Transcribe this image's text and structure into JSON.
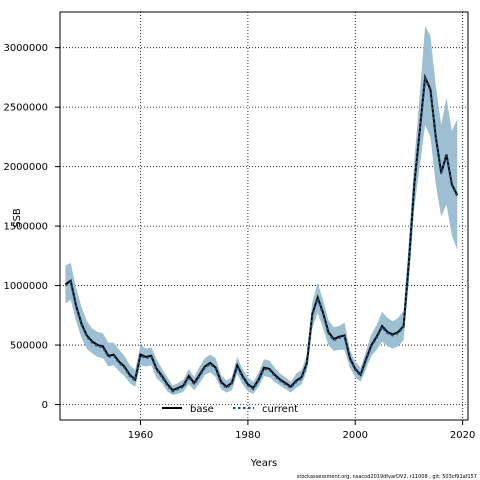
{
  "chart_data": {
    "type": "line",
    "xlabel": "Years",
    "ylabel": "SSB",
    "xlim": [
      1945,
      2021
    ],
    "ylim": [
      -130000,
      3300000
    ],
    "xticks": [
      1960,
      1980,
      2000,
      2020
    ],
    "yticks": [
      0,
      500000,
      1000000,
      1500000,
      2000000,
      2500000,
      3000000
    ],
    "grid": true,
    "legend_position": "bottom-left",
    "band_color": "#9dbfd1",
    "x": [
      1946,
      1947,
      1948,
      1949,
      1950,
      1951,
      1952,
      1953,
      1954,
      1955,
      1956,
      1957,
      1958,
      1959,
      1960,
      1961,
      1962,
      1963,
      1964,
      1965,
      1966,
      1967,
      1968,
      1969,
      1970,
      1971,
      1972,
      1973,
      1974,
      1975,
      1976,
      1977,
      1978,
      1979,
      1980,
      1981,
      1982,
      1983,
      1984,
      1985,
      1986,
      1987,
      1988,
      1989,
      1990,
      1991,
      1992,
      1993,
      1994,
      1995,
      1996,
      1997,
      1998,
      1999,
      2000,
      2001,
      2002,
      2003,
      2004,
      2005,
      2006,
      2007,
      2008,
      2009,
      2010,
      2011,
      2012,
      2013,
      2014,
      2015,
      2016,
      2017,
      2018,
      2019
    ],
    "series": [
      {
        "name": "base",
        "color": "#000000",
        "style": "solid",
        "values": [
          1010000,
          1040000,
          830000,
          680000,
          580000,
          530000,
          500000,
          490000,
          410000,
          420000,
          360000,
          320000,
          250000,
          210000,
          420000,
          400000,
          410000,
          300000,
          240000,
          170000,
          120000,
          140000,
          160000,
          240000,
          180000,
          250000,
          320000,
          350000,
          310000,
          190000,
          150000,
          180000,
          330000,
          240000,
          170000,
          140000,
          210000,
          310000,
          300000,
          250000,
          210000,
          180000,
          150000,
          200000,
          230000,
          350000,
          760000,
          900000,
          770000,
          610000,
          550000,
          570000,
          580000,
          390000,
          300000,
          250000,
          380000,
          500000,
          570000,
          660000,
          610000,
          590000,
          610000,
          660000,
          1200000,
          1850000,
          2300000,
          2750000,
          2650000,
          2250000,
          1950000,
          2100000,
          1850000,
          1760000
        ]
      },
      {
        "name": "current",
        "color": "#1f4f7a",
        "style": "dashed",
        "values": [
          1000000,
          1030000,
          820000,
          670000,
          570000,
          520000,
          490000,
          480000,
          400000,
          410000,
          350000,
          310000,
          240000,
          200000,
          410000,
          390000,
          400000,
          290000,
          230000,
          160000,
          110000,
          130000,
          150000,
          230000,
          170000,
          240000,
          310000,
          340000,
          300000,
          180000,
          140000,
          170000,
          320000,
          230000,
          160000,
          130000,
          200000,
          300000,
          290000,
          240000,
          200000,
          170000,
          140000,
          190000,
          220000,
          340000,
          750000,
          890000,
          760000,
          600000,
          540000,
          560000,
          570000,
          380000,
          290000,
          240000,
          370000,
          490000,
          560000,
          650000,
          600000,
          580000,
          600000,
          650000,
          1190000,
          1840000,
          2290000,
          2740000,
          2640000,
          2240000,
          1940000,
          2090000,
          1840000,
          1750000
        ]
      }
    ],
    "band_upper": [
      1170000,
      1190000,
      980000,
      820000,
      700000,
      640000,
      610000,
      600000,
      520000,
      520000,
      460000,
      410000,
      330000,
      290000,
      500000,
      470000,
      480000,
      380000,
      300000,
      230000,
      160000,
      180000,
      210000,
      300000,
      230000,
      320000,
      390000,
      420000,
      390000,
      250000,
      200000,
      230000,
      400000,
      300000,
      230000,
      190000,
      270000,
      380000,
      370000,
      310000,
      260000,
      230000,
      190000,
      260000,
      290000,
      420000,
      860000,
      1020000,
      880000,
      710000,
      650000,
      660000,
      690000,
      460000,
      360000,
      310000,
      450000,
      590000,
      670000,
      780000,
      730000,
      700000,
      730000,
      790000,
      1370000,
      2050000,
      2600000,
      3180000,
      3100000,
      2680000,
      2350000,
      2580000,
      2300000,
      2400000
    ],
    "band_lower": [
      850000,
      880000,
      700000,
      560000,
      470000,
      430000,
      400000,
      390000,
      320000,
      330000,
      280000,
      240000,
      180000,
      150000,
      330000,
      320000,
      330000,
      220000,
      180000,
      110000,
      80000,
      90000,
      110000,
      170000,
      120000,
      180000,
      250000,
      270000,
      230000,
      130000,
      100000,
      120000,
      260000,
      170000,
      110000,
      90000,
      150000,
      240000,
      230000,
      190000,
      160000,
      130000,
      100000,
      140000,
      170000,
      280000,
      640000,
      770000,
      640000,
      500000,
      450000,
      460000,
      460000,
      310000,
      230000,
      190000,
      300000,
      410000,
      460000,
      530000,
      490000,
      470000,
      490000,
      540000,
      1040000,
      1650000,
      2000000,
      2350000,
      2250000,
      1850000,
      1580000,
      1680000,
      1420000,
      1300000
    ]
  },
  "legend": {
    "base_label": "base",
    "current_label": "current"
  },
  "footer": "stockassessment.org, nsacod2019dfvarDV2, r11008 , git: 503cf91af157"
}
